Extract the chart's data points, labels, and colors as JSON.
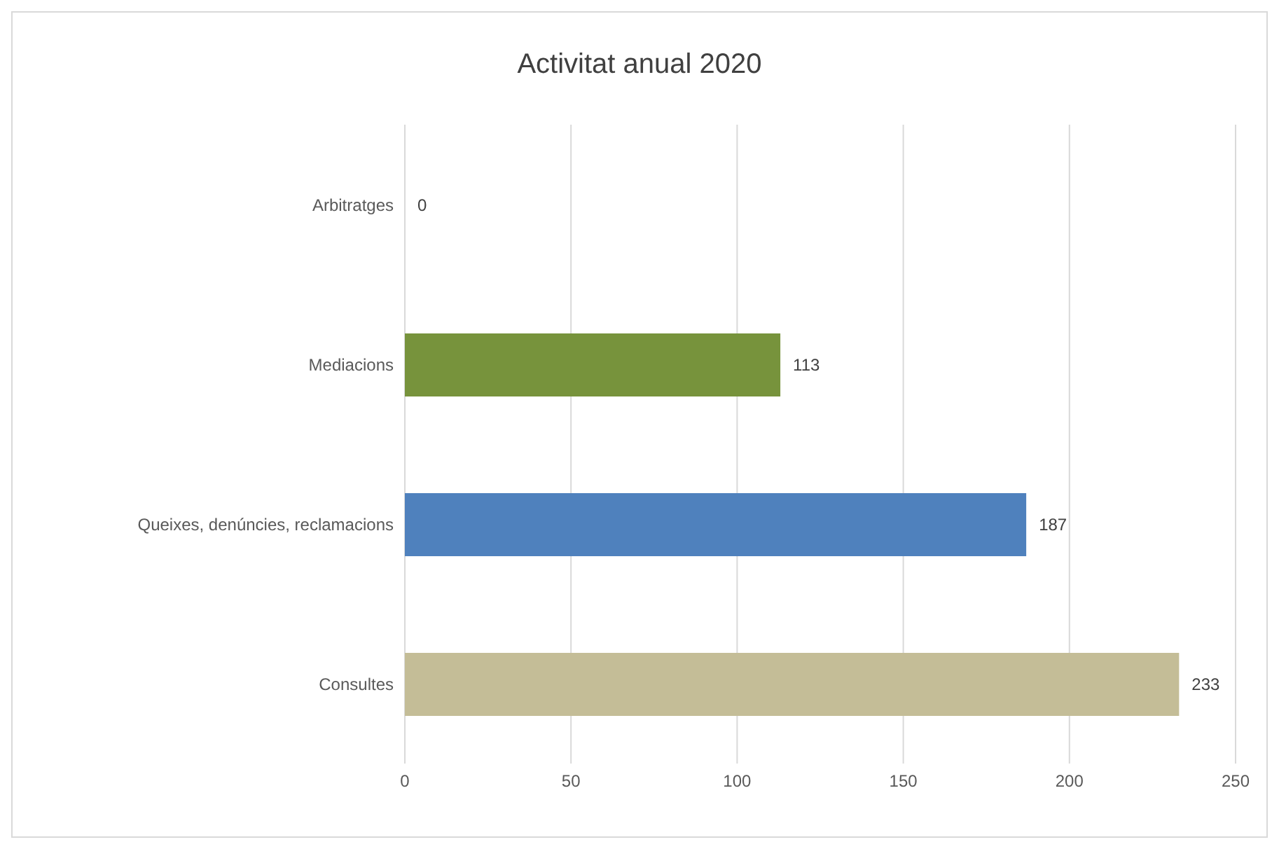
{
  "chart_data": {
    "type": "bar",
    "orientation": "horizontal",
    "title": "Activitat anual 2020",
    "categories": [
      "Arbitratges",
      "Mediacions",
      "Queixes, denúncies, reclamacions",
      "Consultes"
    ],
    "values": [
      0,
      113,
      187,
      233
    ],
    "colors": [
      "#8064a2",
      "#77933c",
      "#4f81bd",
      "#c4bd97"
    ],
    "xlim": [
      0,
      250
    ],
    "xticks": [
      0,
      50,
      100,
      150,
      200,
      250
    ],
    "grid": "x",
    "data_labels": true
  }
}
